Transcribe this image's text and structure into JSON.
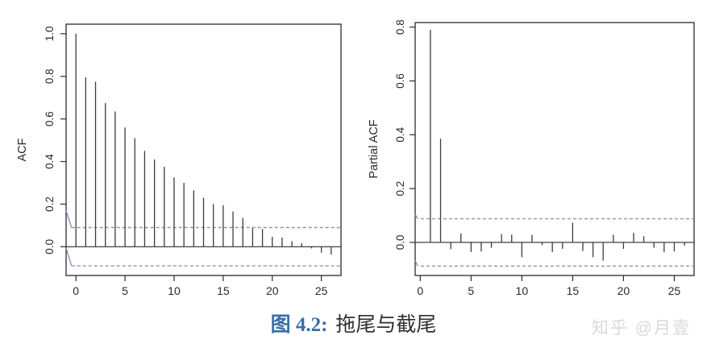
{
  "caption": {
    "prefix": "图 4.2:",
    "text": "拖尾与截尾"
  },
  "watermark": {
    "text": "知乎 @月壹"
  },
  "colors": {
    "background": "#ffffff",
    "bar": "#3c3c3c",
    "axis": "#2b2b2b",
    "tick_text": "#2b2b2b",
    "ci_line": "#8f90c6",
    "caption_accent": "#3a6ea8",
    "caption_text": "#2f2f2f",
    "watermark": "#d9d9d9"
  },
  "chart_data": [
    {
      "type": "bar",
      "title": "",
      "xlabel": "",
      "ylabel": "ACF",
      "grid": false,
      "legend": null,
      "lags": [
        0,
        1,
        2,
        3,
        4,
        5,
        6,
        7,
        8,
        9,
        10,
        11,
        12,
        13,
        14,
        15,
        16,
        17,
        18,
        19,
        20,
        21,
        22,
        23,
        24,
        25,
        26
      ],
      "values": [
        1.0,
        0.795,
        0.775,
        0.675,
        0.635,
        0.56,
        0.51,
        0.45,
        0.41,
        0.375,
        0.325,
        0.3,
        0.265,
        0.23,
        0.2,
        0.195,
        0.165,
        0.135,
        0.088,
        0.083,
        0.047,
        0.043,
        0.026,
        0.017,
        -0.008,
        -0.028,
        -0.037
      ],
      "xticks": [
        0,
        5,
        10,
        15,
        20,
        25
      ],
      "xtick_labels": [
        "0",
        "5",
        "10",
        "15",
        "20",
        "25"
      ],
      "ytick_values": [
        0.0,
        0.2,
        0.4,
        0.6,
        0.8,
        1.0
      ],
      "yticks": [
        "0.0",
        "0.2",
        "0.4",
        "0.6",
        "0.8",
        "1.0"
      ],
      "xlim": [
        -1,
        27
      ],
      "ylim": [
        -0.135,
        1.045
      ],
      "conf_level": 0.09,
      "conf_style": "dashed"
    },
    {
      "type": "bar",
      "title": "",
      "xlabel": "",
      "ylabel": "Partial ACF",
      "grid": false,
      "legend": null,
      "lags": [
        1,
        2,
        3,
        4,
        5,
        6,
        7,
        8,
        9,
        10,
        11,
        12,
        13,
        14,
        15,
        16,
        17,
        18,
        19,
        20,
        21,
        22,
        23,
        24,
        25,
        26
      ],
      "values": [
        0.79,
        0.385,
        -0.025,
        0.033,
        -0.036,
        -0.034,
        -0.02,
        0.031,
        0.029,
        -0.055,
        0.028,
        -0.01,
        -0.036,
        -0.024,
        0.073,
        -0.032,
        -0.055,
        -0.068,
        0.028,
        -0.024,
        0.035,
        0.023,
        -0.02,
        -0.037,
        -0.034,
        -0.012
      ],
      "xticks": [
        0,
        5,
        10,
        15,
        20,
        25
      ],
      "xtick_labels": [
        "0",
        "5",
        "10",
        "15",
        "20",
        "25"
      ],
      "ytick_values": [
        0.0,
        0.2,
        0.4,
        0.6,
        0.8
      ],
      "yticks": [
        "0.0",
        "0.2",
        "0.4",
        "0.6",
        "0.8"
      ],
      "xlim": [
        -0.5,
        26.95
      ],
      "ylim": [
        -0.123,
        0.817
      ],
      "conf_level": 0.088,
      "conf_style": "dashed"
    }
  ]
}
